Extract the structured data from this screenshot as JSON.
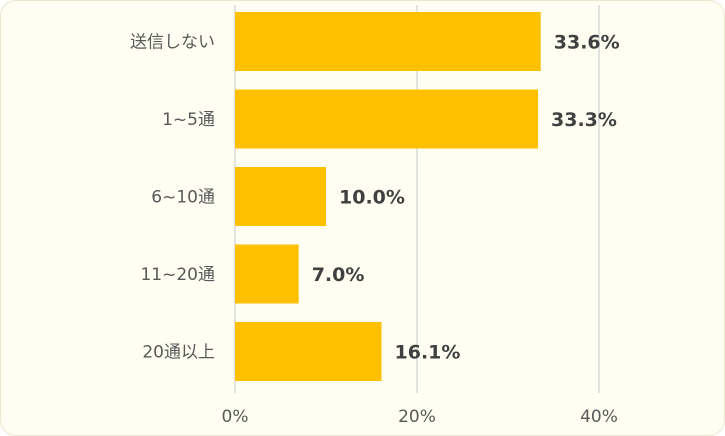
{
  "chart_data": {
    "type": "bar",
    "orientation": "horizontal",
    "categories": [
      "送信しない",
      "1~5通",
      "6~10通",
      "11~20通",
      "20通以上"
    ],
    "values": [
      33.6,
      33.3,
      10.0,
      7.0,
      16.1
    ],
    "data_labels": [
      "33.6%",
      "33.3%",
      "10.0%",
      "7.0%",
      "16.1%"
    ],
    "x_ticks": [
      0,
      20,
      40
    ],
    "x_tick_labels": [
      "0%",
      "20%",
      "40%"
    ],
    "xlim": [
      0,
      40
    ],
    "grid": true,
    "legend": "none",
    "title": "",
    "xlabel": "",
    "ylabel": "",
    "colors": {
      "bar": "#ffc000",
      "grid": "#d9d9d9",
      "background": "#fffef2",
      "category_text": "#595959",
      "data_label_text": "#404040"
    }
  }
}
